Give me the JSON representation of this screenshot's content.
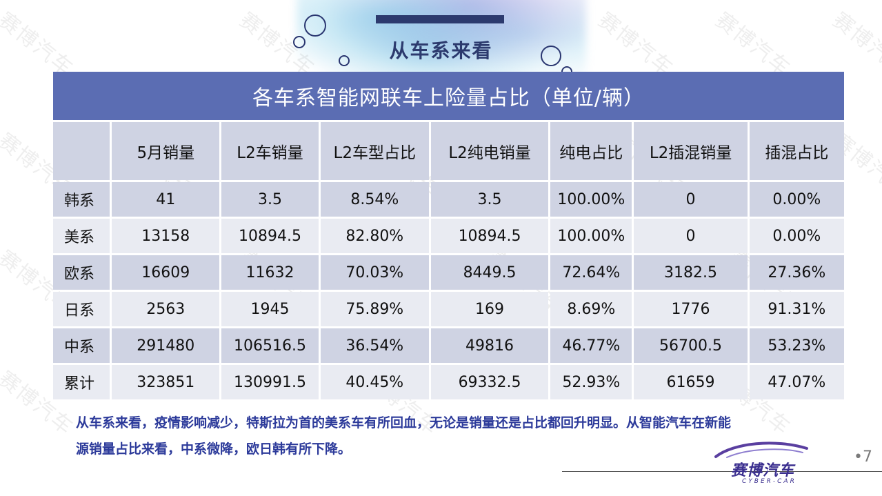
{
  "slide": {
    "title": "从车系来看",
    "page_number": "•7"
  },
  "watermark": {
    "text": "赛博汽车"
  },
  "table": {
    "caption": "各车系智能网联车上险量占比（单位/辆）",
    "columns": [
      "",
      "5月销量",
      "L2车销量",
      "L2车型占比",
      "L2纯电销量",
      "纯电占比",
      "L2插混销量",
      "插混占比"
    ],
    "rows": [
      [
        "韩系",
        "41",
        "3.5",
        "8.54%",
        "3.5",
        "100.00%",
        "0",
        "0.00%"
      ],
      [
        "美系",
        "13158",
        "10894.5",
        "82.80%",
        "10894.5",
        "100.00%",
        "0",
        "0.00%"
      ],
      [
        "欧系",
        "16609",
        "11632",
        "70.03%",
        "8449.5",
        "72.64%",
        "3182.5",
        "27.36%"
      ],
      [
        "日系",
        "2563",
        "1945",
        "75.89%",
        "169",
        "8.69%",
        "1776",
        "91.31%"
      ],
      [
        "中系",
        "291480",
        "106516.5",
        "36.54%",
        "49816",
        "46.77%",
        "56700.5",
        "53.23%"
      ],
      [
        "累计",
        "323851",
        "130991.5",
        "40.45%",
        "69332.5",
        "52.93%",
        "61659",
        "47.07%"
      ]
    ]
  },
  "note": {
    "line1": "从车系来看，疫情影响减少，特斯拉为首的美系车有所回血，无论是销量还是占比都回升明显。从智能汽车在新能",
    "line2": "源销量占比来看，中系微降，欧日韩有所下降。"
  },
  "logo": {
    "name": "赛博汽车",
    "sub": "CYBER-CAR"
  },
  "colors": {
    "header_bg": "#5b6db3",
    "cell_dark": "#cfd3e3",
    "cell_light": "#e9ebf2",
    "title": "#2c3a6e",
    "note": "#2c3a9a"
  }
}
